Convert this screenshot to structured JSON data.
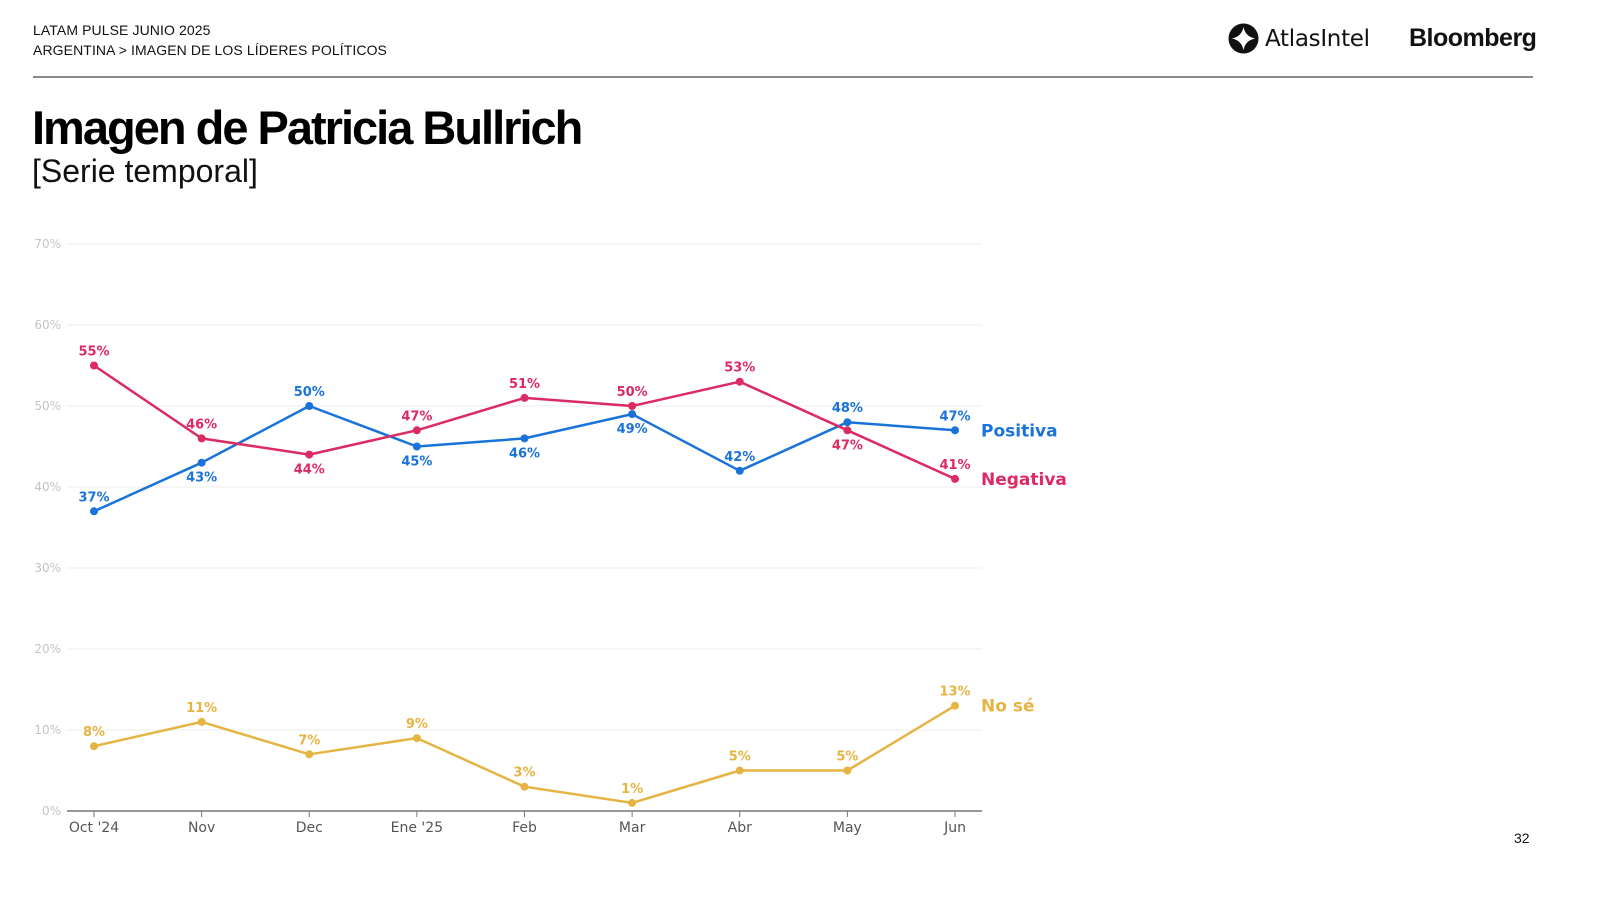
{
  "header": {
    "line1": "LATAM PULSE JUNIO 2025",
    "line2": "ARGENTINA > IMAGEN DE LOS LÍDERES POLÍTICOS",
    "logo_atlas": "AtlasIntel",
    "logo_bloomberg": "Bloomberg"
  },
  "title": "Imagen de Patricia Bullrich",
  "subtitle": "[Serie temporal]",
  "page_number": "32",
  "colors": {
    "positiva": "#1a73d9",
    "negativa": "#dc2a63",
    "nose": "#e5b443",
    "grid": "#eeeeee",
    "axis": "#777777"
  },
  "chart_data": {
    "type": "line",
    "title": "Imagen de Patricia Bullrich",
    "subtitle": "[Serie temporal]",
    "xlabel": "",
    "ylabel": "",
    "categories": [
      "Oct '24",
      "Nov",
      "Dec",
      "Ene '25",
      "Feb",
      "Mar",
      "Abr",
      "May",
      "Jun"
    ],
    "ylim": [
      0,
      70
    ],
    "yticks": [
      0,
      10,
      20,
      30,
      40,
      50,
      60,
      70
    ],
    "ytick_labels": [
      "0%",
      "10%",
      "20%",
      "30%",
      "40%",
      "50%",
      "60%",
      "70%"
    ],
    "grid": true,
    "legend": "inline-right",
    "series": [
      {
        "name": "Positiva",
        "color": "#1a73d9",
        "values": [
          37,
          43,
          50,
          45,
          46,
          49,
          42,
          48,
          47
        ],
        "labels": [
          "37%",
          "43%",
          "50%",
          "45%",
          "46%",
          "49%",
          "42%",
          "48%",
          "47%"
        ],
        "label_pos": [
          "above",
          "below",
          "above",
          "below",
          "below",
          "below",
          "above",
          "above",
          "above"
        ]
      },
      {
        "name": "Negativa",
        "color": "#dc2a63",
        "values": [
          55,
          46,
          44,
          47,
          51,
          50,
          53,
          47,
          41
        ],
        "labels": [
          "55%",
          "46%",
          "44%",
          "47%",
          "51%",
          "50%",
          "53%",
          "47%",
          "41%"
        ],
        "label_pos": [
          "above",
          "above",
          "below",
          "above",
          "above",
          "above",
          "above",
          "below",
          "above"
        ]
      },
      {
        "name": "No sé",
        "color": "#e5b443",
        "values": [
          8,
          11,
          7,
          9,
          3,
          1,
          5,
          5,
          13
        ],
        "labels": [
          "8%",
          "11%",
          "7%",
          "9%",
          "3%",
          "1%",
          "5%",
          "5%",
          "13%"
        ],
        "label_pos": [
          "above",
          "above",
          "above",
          "above",
          "above",
          "above",
          "above",
          "above",
          "above"
        ]
      }
    ]
  }
}
